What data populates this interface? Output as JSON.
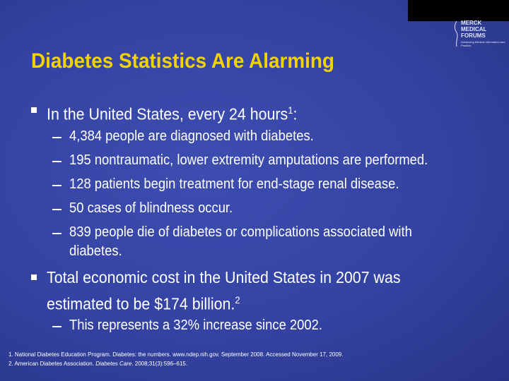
{
  "logo": {
    "name": "MERCK MEDICAL FORUMS",
    "tagline": "Advancing Medical Information and Practice"
  },
  "title": "Diabetes Statistics Are Alarming",
  "bullets": [
    {
      "text": "In the United States, every 24 hours",
      "sup": "1",
      "after": ":",
      "items": [
        "4,384 people are diagnosed with diabetes.",
        "195 nontraumatic, lower extremity amputations are performed.",
        "128 patients begin treatment for end-stage renal disease.",
        "50 cases of blindness occur.",
        "839 people die of diabetes or complications associated with diabetes."
      ]
    },
    {
      "text": "Total economic cost in the United States in 2007 was estimated to be $174 billion.",
      "sup": "2",
      "after": "",
      "items": [
        "This represents a 32% increase since 2002."
      ]
    }
  ],
  "footnotes": [
    {
      "before": "1. National Diabetes Education Program. Diabetes: the numbers. www.ndep.nih.gov. September 2008. Accessed November 17, 2009.",
      "italic": "",
      "after": ""
    },
    {
      "before": "2. American Diabetes Association. ",
      "italic": "Diabetes Care",
      "after": ". 2008;31(3):596–615."
    }
  ]
}
